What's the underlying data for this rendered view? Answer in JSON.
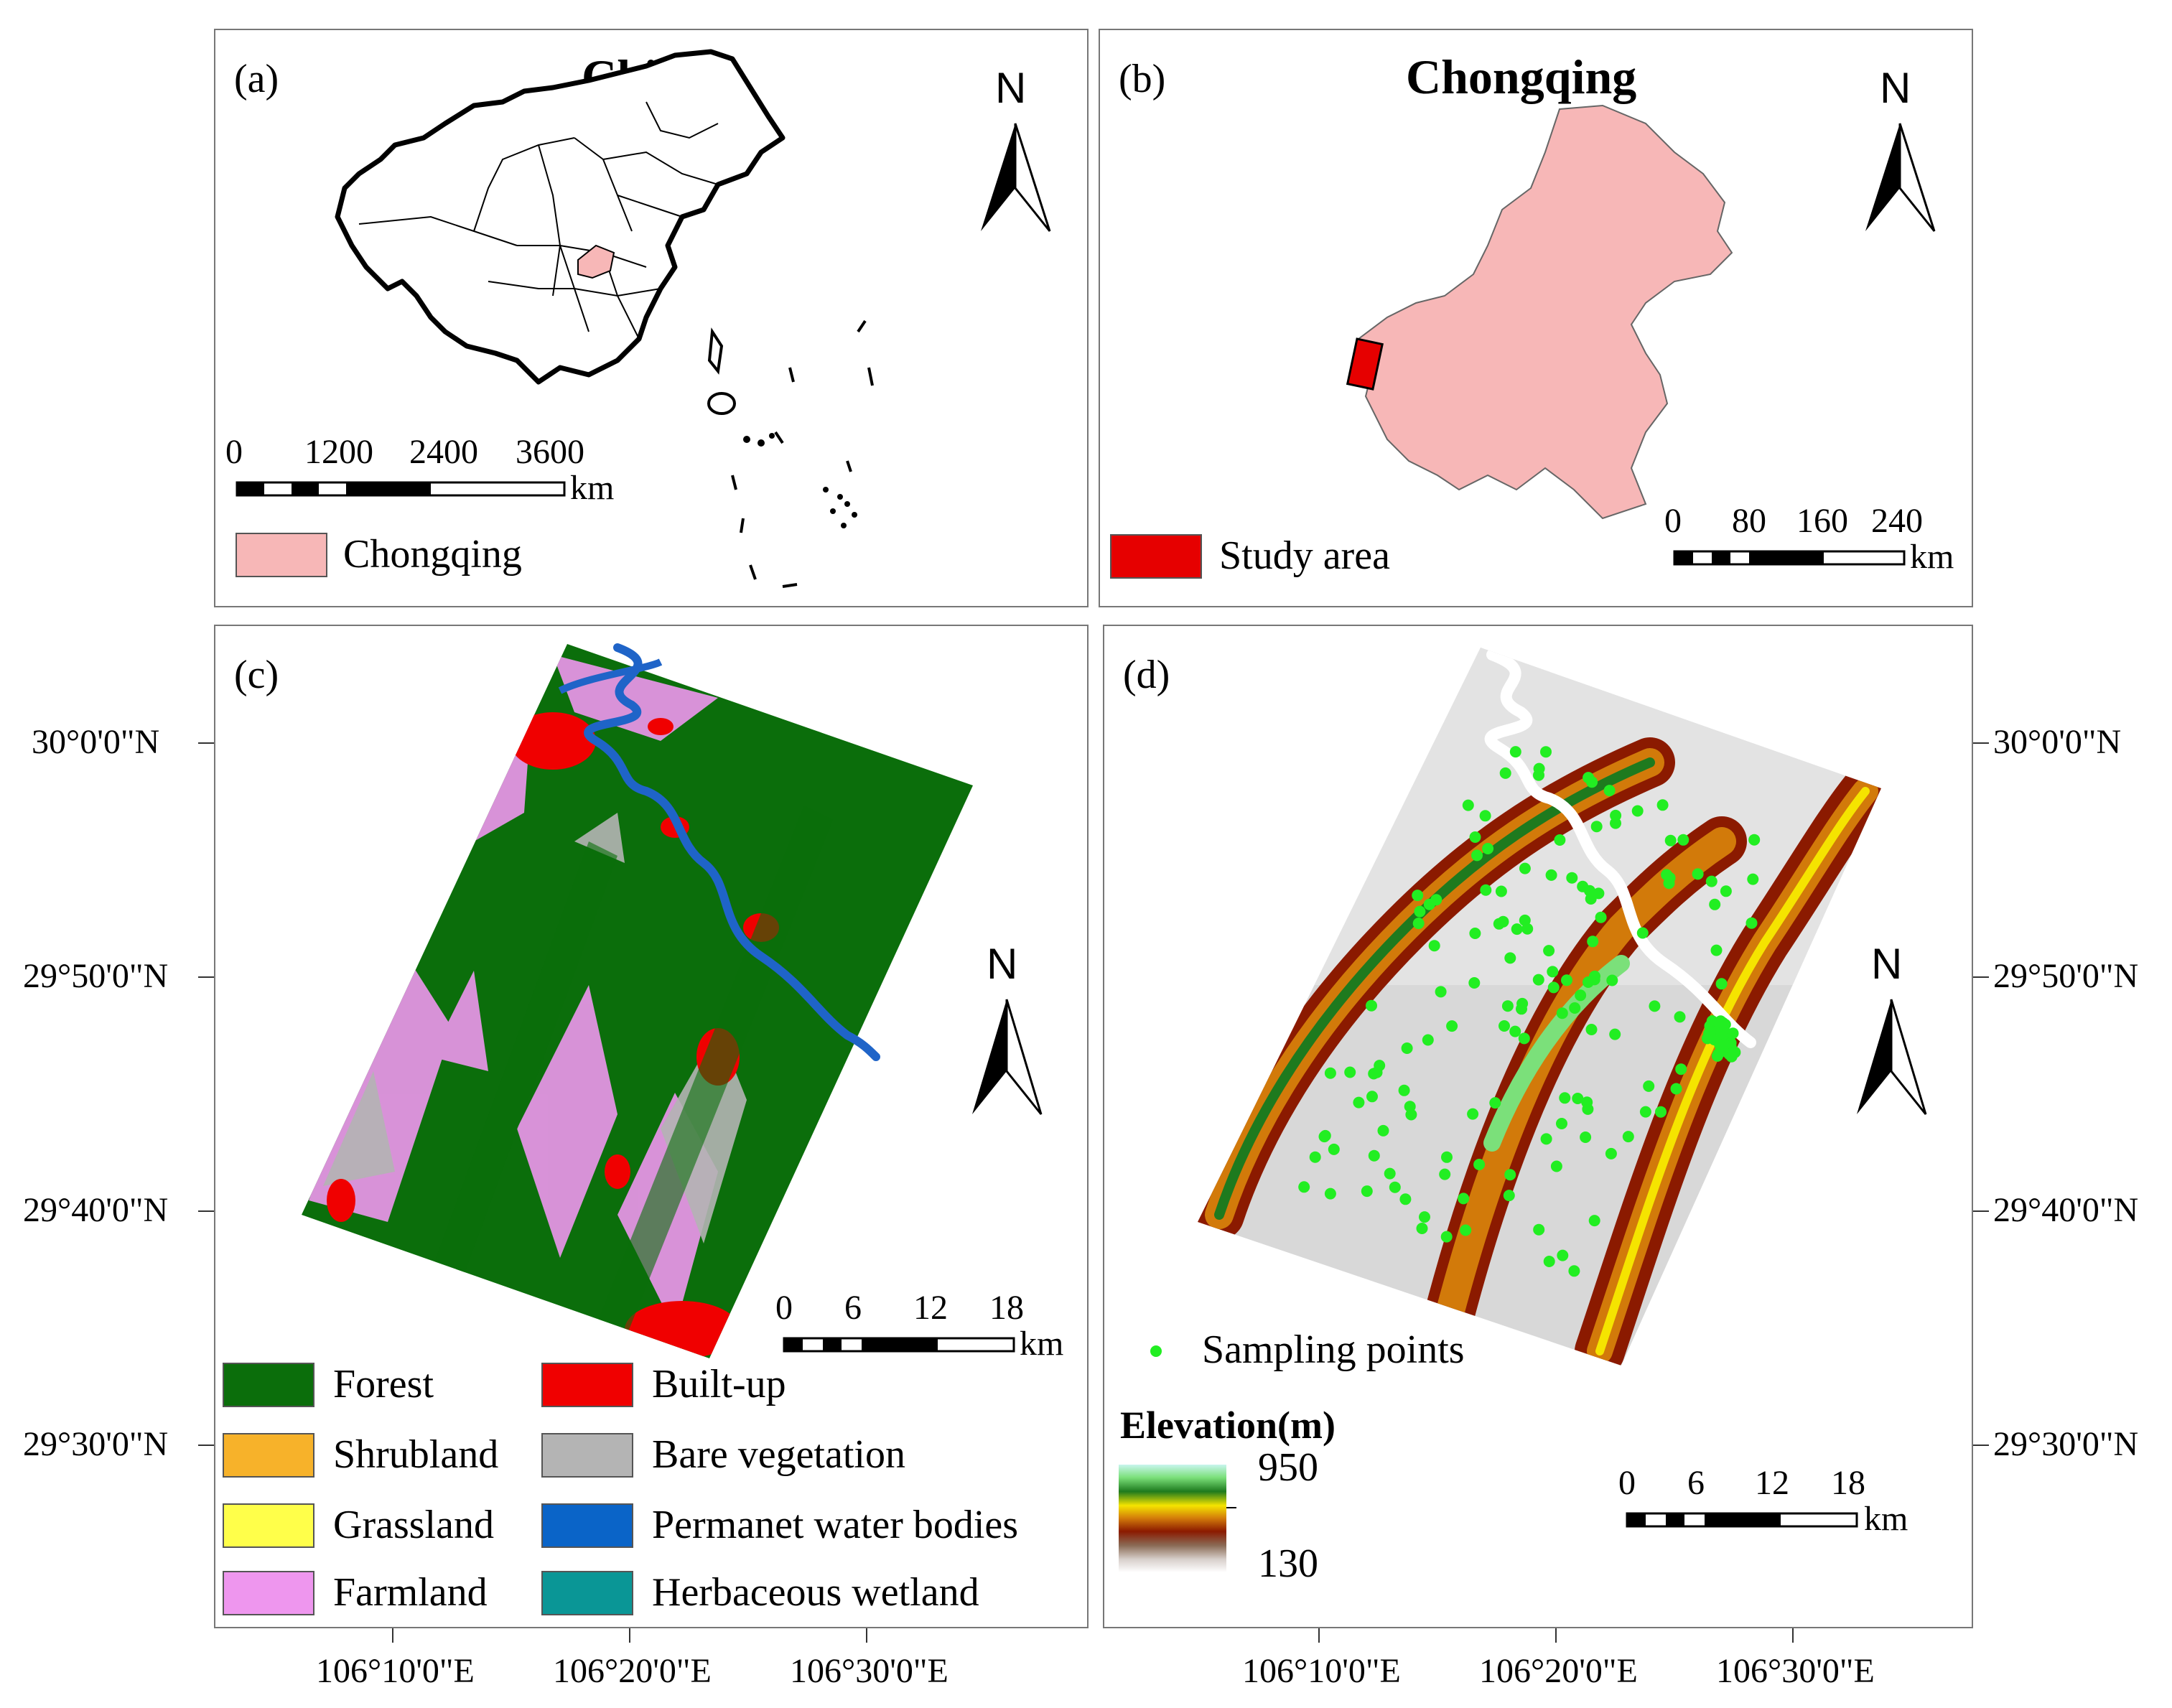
{
  "panels": {
    "a": {
      "label": "(a)",
      "title": "China",
      "north": "N",
      "scale": {
        "ticks": [
          "0",
          "1200",
          "2400",
          "3600"
        ],
        "unit": "km"
      },
      "legend": [
        {
          "label": "Chongqing",
          "color": "#f7b7b7"
        }
      ]
    },
    "b": {
      "label": "(b)",
      "title": "Chongqing",
      "north": "N",
      "scale": {
        "ticks": [
          "0",
          "80",
          "160",
          "240"
        ],
        "unit": "km"
      },
      "legend": [
        {
          "label": "Study area",
          "color": "#e60000"
        }
      ]
    },
    "c": {
      "label": "(c)",
      "north": "N",
      "scale": {
        "ticks": [
          "0",
          "6",
          "12",
          "18"
        ],
        "unit": "km"
      },
      "legend": [
        {
          "label": "Forest",
          "color": "#0b6e0b"
        },
        {
          "label": "Built-up",
          "color": "#f00000"
        },
        {
          "label": "Shrubland",
          "color": "#f7b22a"
        },
        {
          "label": "Bare vegetation",
          "color": "#b4b4b4"
        },
        {
          "label": "Grassland",
          "color": "#ffff4a"
        },
        {
          "label": "Permanet water bodies",
          "color": "#0a64c8"
        },
        {
          "label": "Farmland",
          "color": "#ee96ee"
        },
        {
          "label": "Herbaceous wetland",
          "color": "#0a9696"
        }
      ]
    },
    "d": {
      "label": "(d)",
      "north": "N",
      "scale": {
        "ticks": [
          "0",
          "6",
          "12",
          "18"
        ],
        "unit": "km"
      },
      "points_label": "Sampling points",
      "points_color": "#22ee22",
      "elevation": {
        "title": "Elevation(m)",
        "max": "950",
        "min": "130"
      }
    }
  },
  "axes": {
    "lat_labels": [
      "30°0'0\"N",
      "29°50'0\"N",
      "29°40'0\"N",
      "29°30'0\"N"
    ],
    "lon_labels": [
      "106°10'0\"E",
      "106°20'0\"E",
      "106°30'0\"E"
    ]
  }
}
